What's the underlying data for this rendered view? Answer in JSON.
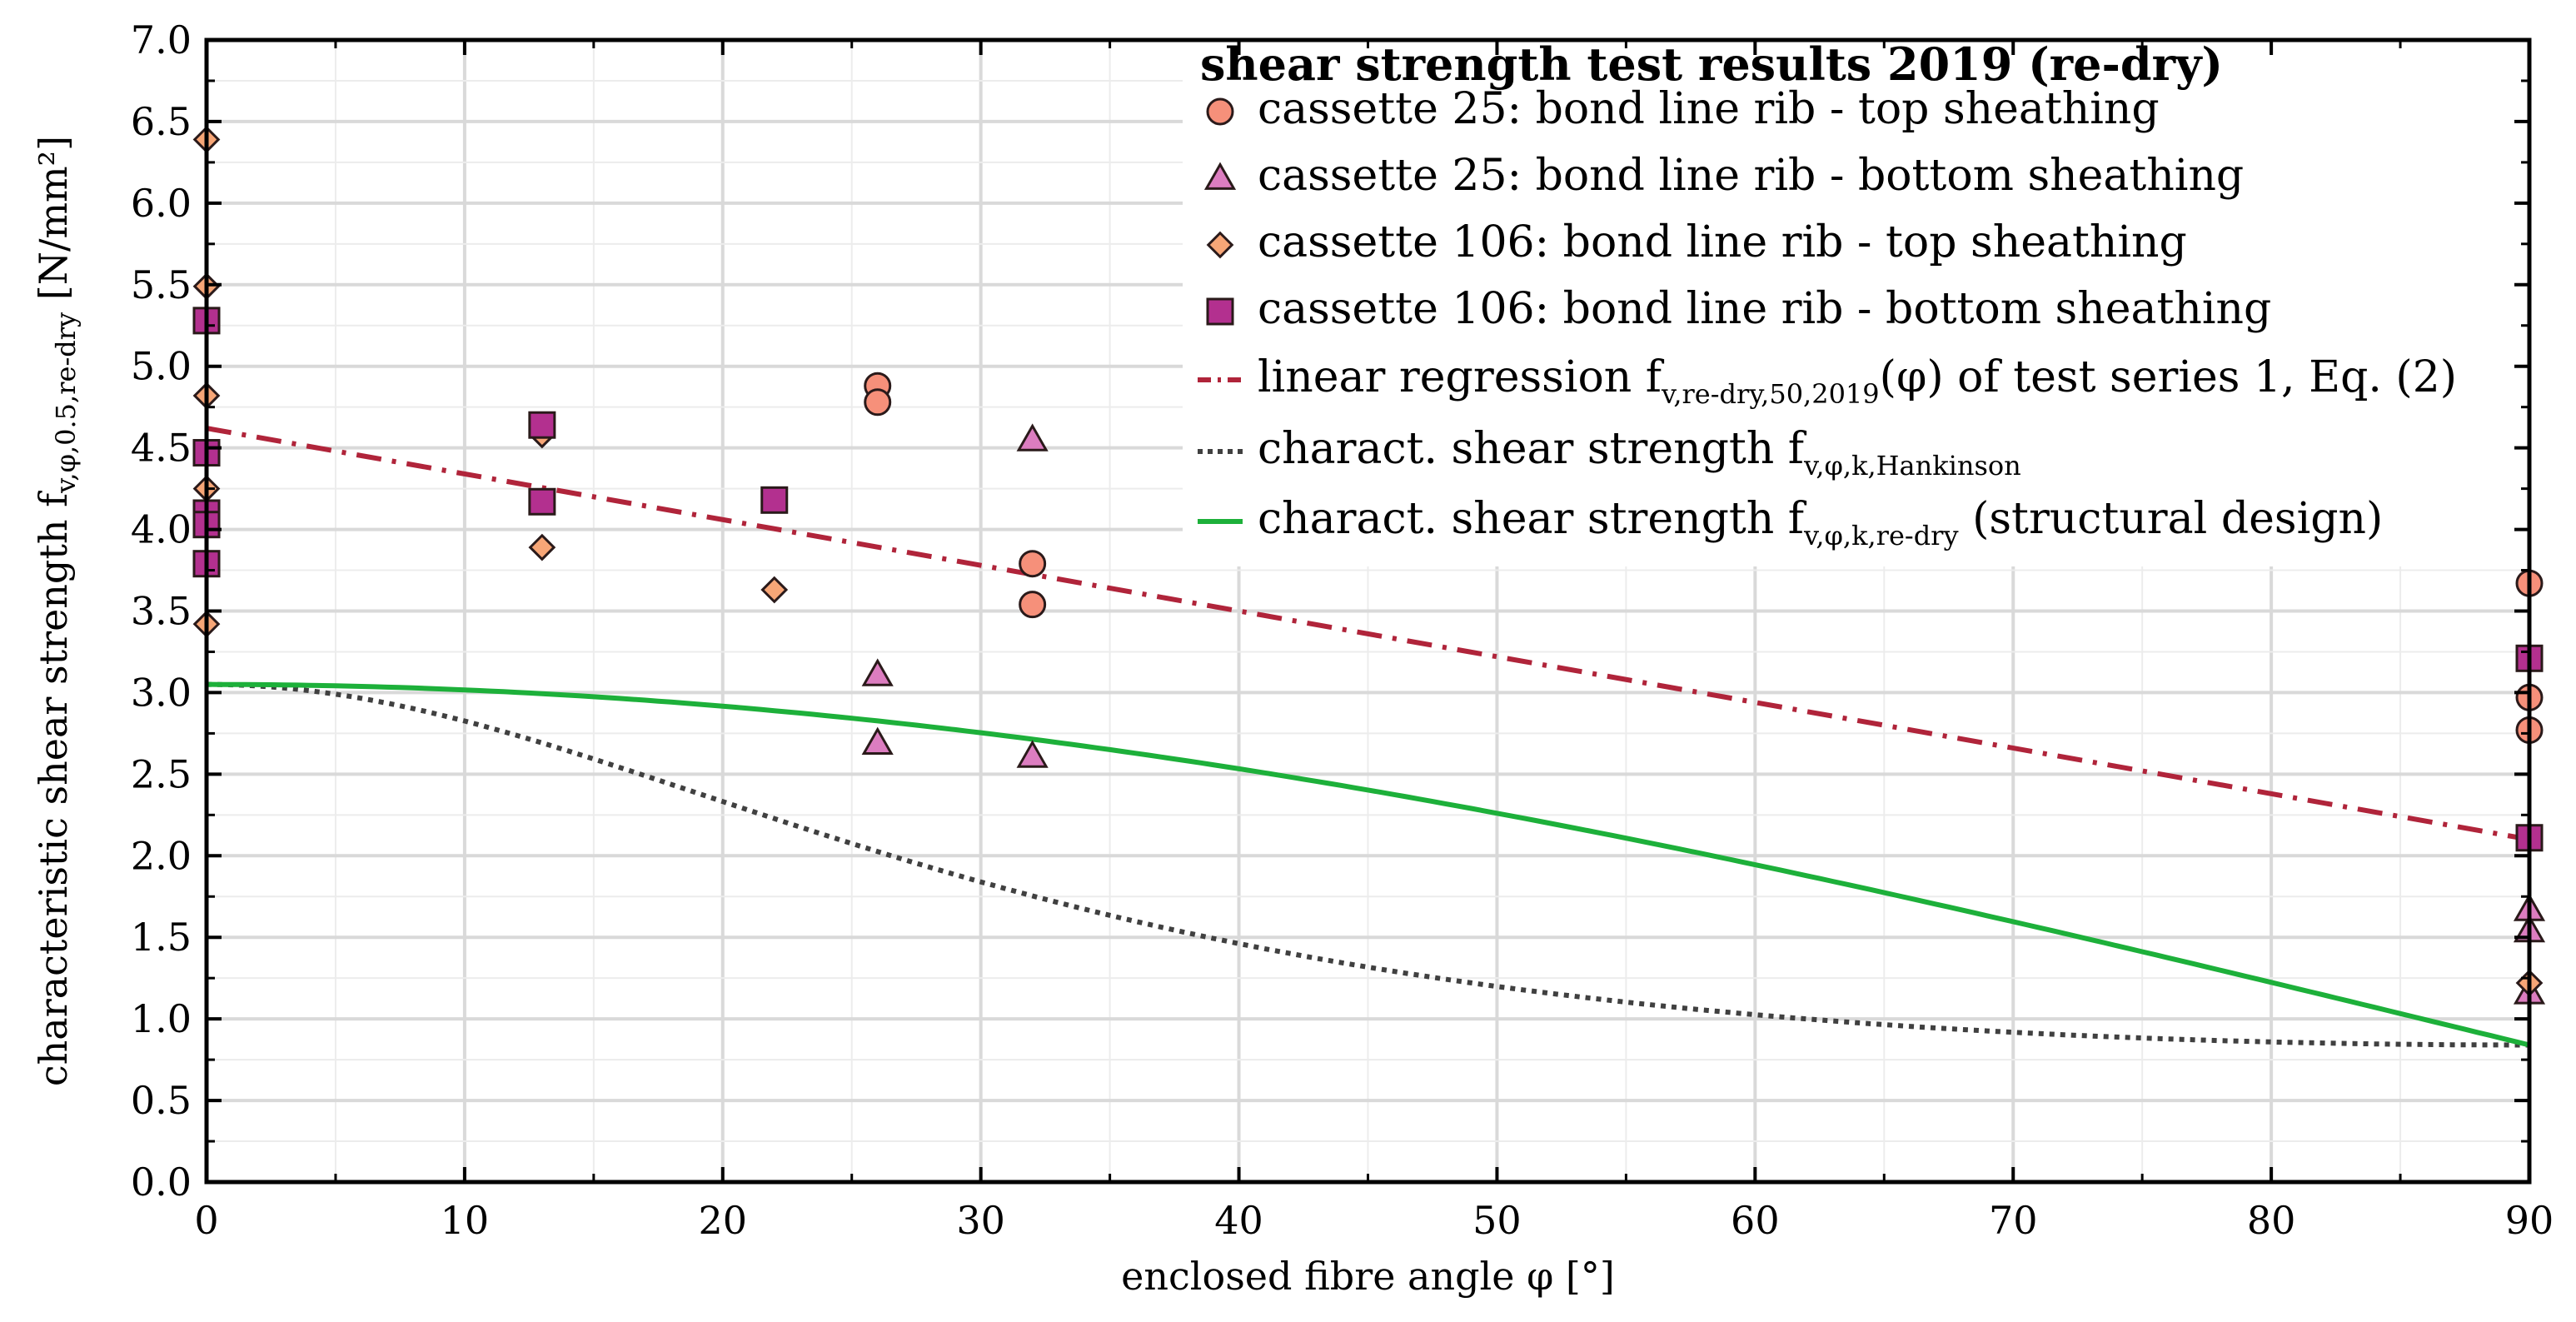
{
  "chart_data": {
    "type": "scatter",
    "xlabel": "enclosed fibre angle φ [°]",
    "ylabel": {
      "main": "characteristic shear strength f",
      "sub": "v,φ,0.5,re-dry",
      "unit": " [N/mm²]"
    },
    "xlim": [
      0,
      90
    ],
    "ylim": [
      0,
      7
    ],
    "x_ticks": [
      "0",
      "10",
      "20",
      "30",
      "40",
      "50",
      "60",
      "70",
      "80",
      "90"
    ],
    "y_ticks": [
      "0.0",
      "0.5",
      "1.0",
      "1.5",
      "2.0",
      "2.5",
      "3.0",
      "3.5",
      "4.0",
      "4.5",
      "5.0",
      "5.5",
      "6.0",
      "6.5",
      "7.0"
    ],
    "grid": true,
    "legend": {
      "placement": "top-right",
      "title": "shear strength test results 2019 (re-dry)"
    },
    "series": [
      {
        "name": "cassette 25:   bond line rib - top sheathing",
        "marker": "circle",
        "color": "#F6907A",
        "points": [
          [
            26,
            4.88
          ],
          [
            26,
            4.78
          ],
          [
            32,
            3.79
          ],
          [
            32,
            3.54
          ],
          [
            90,
            3.67
          ],
          [
            90,
            2.97
          ],
          [
            90,
            2.77
          ]
        ]
      },
      {
        "name": "cassette 25:   bond line rib - bottom sheathing",
        "marker": "triangle",
        "color": "#DC7DC0",
        "points": [
          [
            26,
            3.11
          ],
          [
            26,
            2.69
          ],
          [
            32,
            4.55
          ],
          [
            32,
            2.61
          ],
          [
            90,
            1.67
          ],
          [
            90,
            1.54
          ],
          [
            90,
            1.16
          ]
        ]
      },
      {
        "name": "cassette 106:  bond line rib - top sheathing",
        "marker": "diamond",
        "color": "#F7A677",
        "points": [
          [
            0,
            6.39
          ],
          [
            0,
            5.49
          ],
          [
            0,
            4.82
          ],
          [
            0,
            4.25
          ],
          [
            0,
            3.42
          ],
          [
            13,
            4.58
          ],
          [
            13,
            3.89
          ],
          [
            22,
            3.63
          ],
          [
            90,
            1.22
          ]
        ]
      },
      {
        "name": "cassette 106:  bond line rib - bottom sheathing",
        "marker": "square",
        "color": "#B3308F",
        "points": [
          [
            0,
            5.28
          ],
          [
            0,
            4.47
          ],
          [
            0,
            4.1
          ],
          [
            0,
            4.03
          ],
          [
            0,
            3.79
          ],
          [
            13,
            4.64
          ],
          [
            13,
            4.17
          ],
          [
            22,
            4.18
          ],
          [
            90,
            3.21
          ],
          [
            90,
            2.11
          ]
        ]
      },
      {
        "name": "linear regression",
        "name_sub": "v,re-dry,50,2019",
        "name_tail": "(φ) of test series 1, Eq. (2)",
        "name_f": " f",
        "type": "line",
        "style": "dash-dot",
        "color": "#B0243A",
        "points": [
          [
            0,
            4.62
          ],
          [
            90,
            2.1
          ]
        ]
      },
      {
        "name": "charact. shear strength f",
        "name_sub": "v,φ,k,Hankinson",
        "type": "line",
        "style": "dotted",
        "color": "#404040",
        "model": "hankinson",
        "fv0": 3.05,
        "fv90": 0.84
      },
      {
        "name": "charact. shear strength f",
        "name_sub": "v,φ,k,re-dry",
        "name_tail": " (structural design)",
        "type": "line",
        "style": "solid",
        "color": "#1DB03A",
        "model": "cosine",
        "fv0": 3.05,
        "fv90": 0.84
      }
    ]
  }
}
